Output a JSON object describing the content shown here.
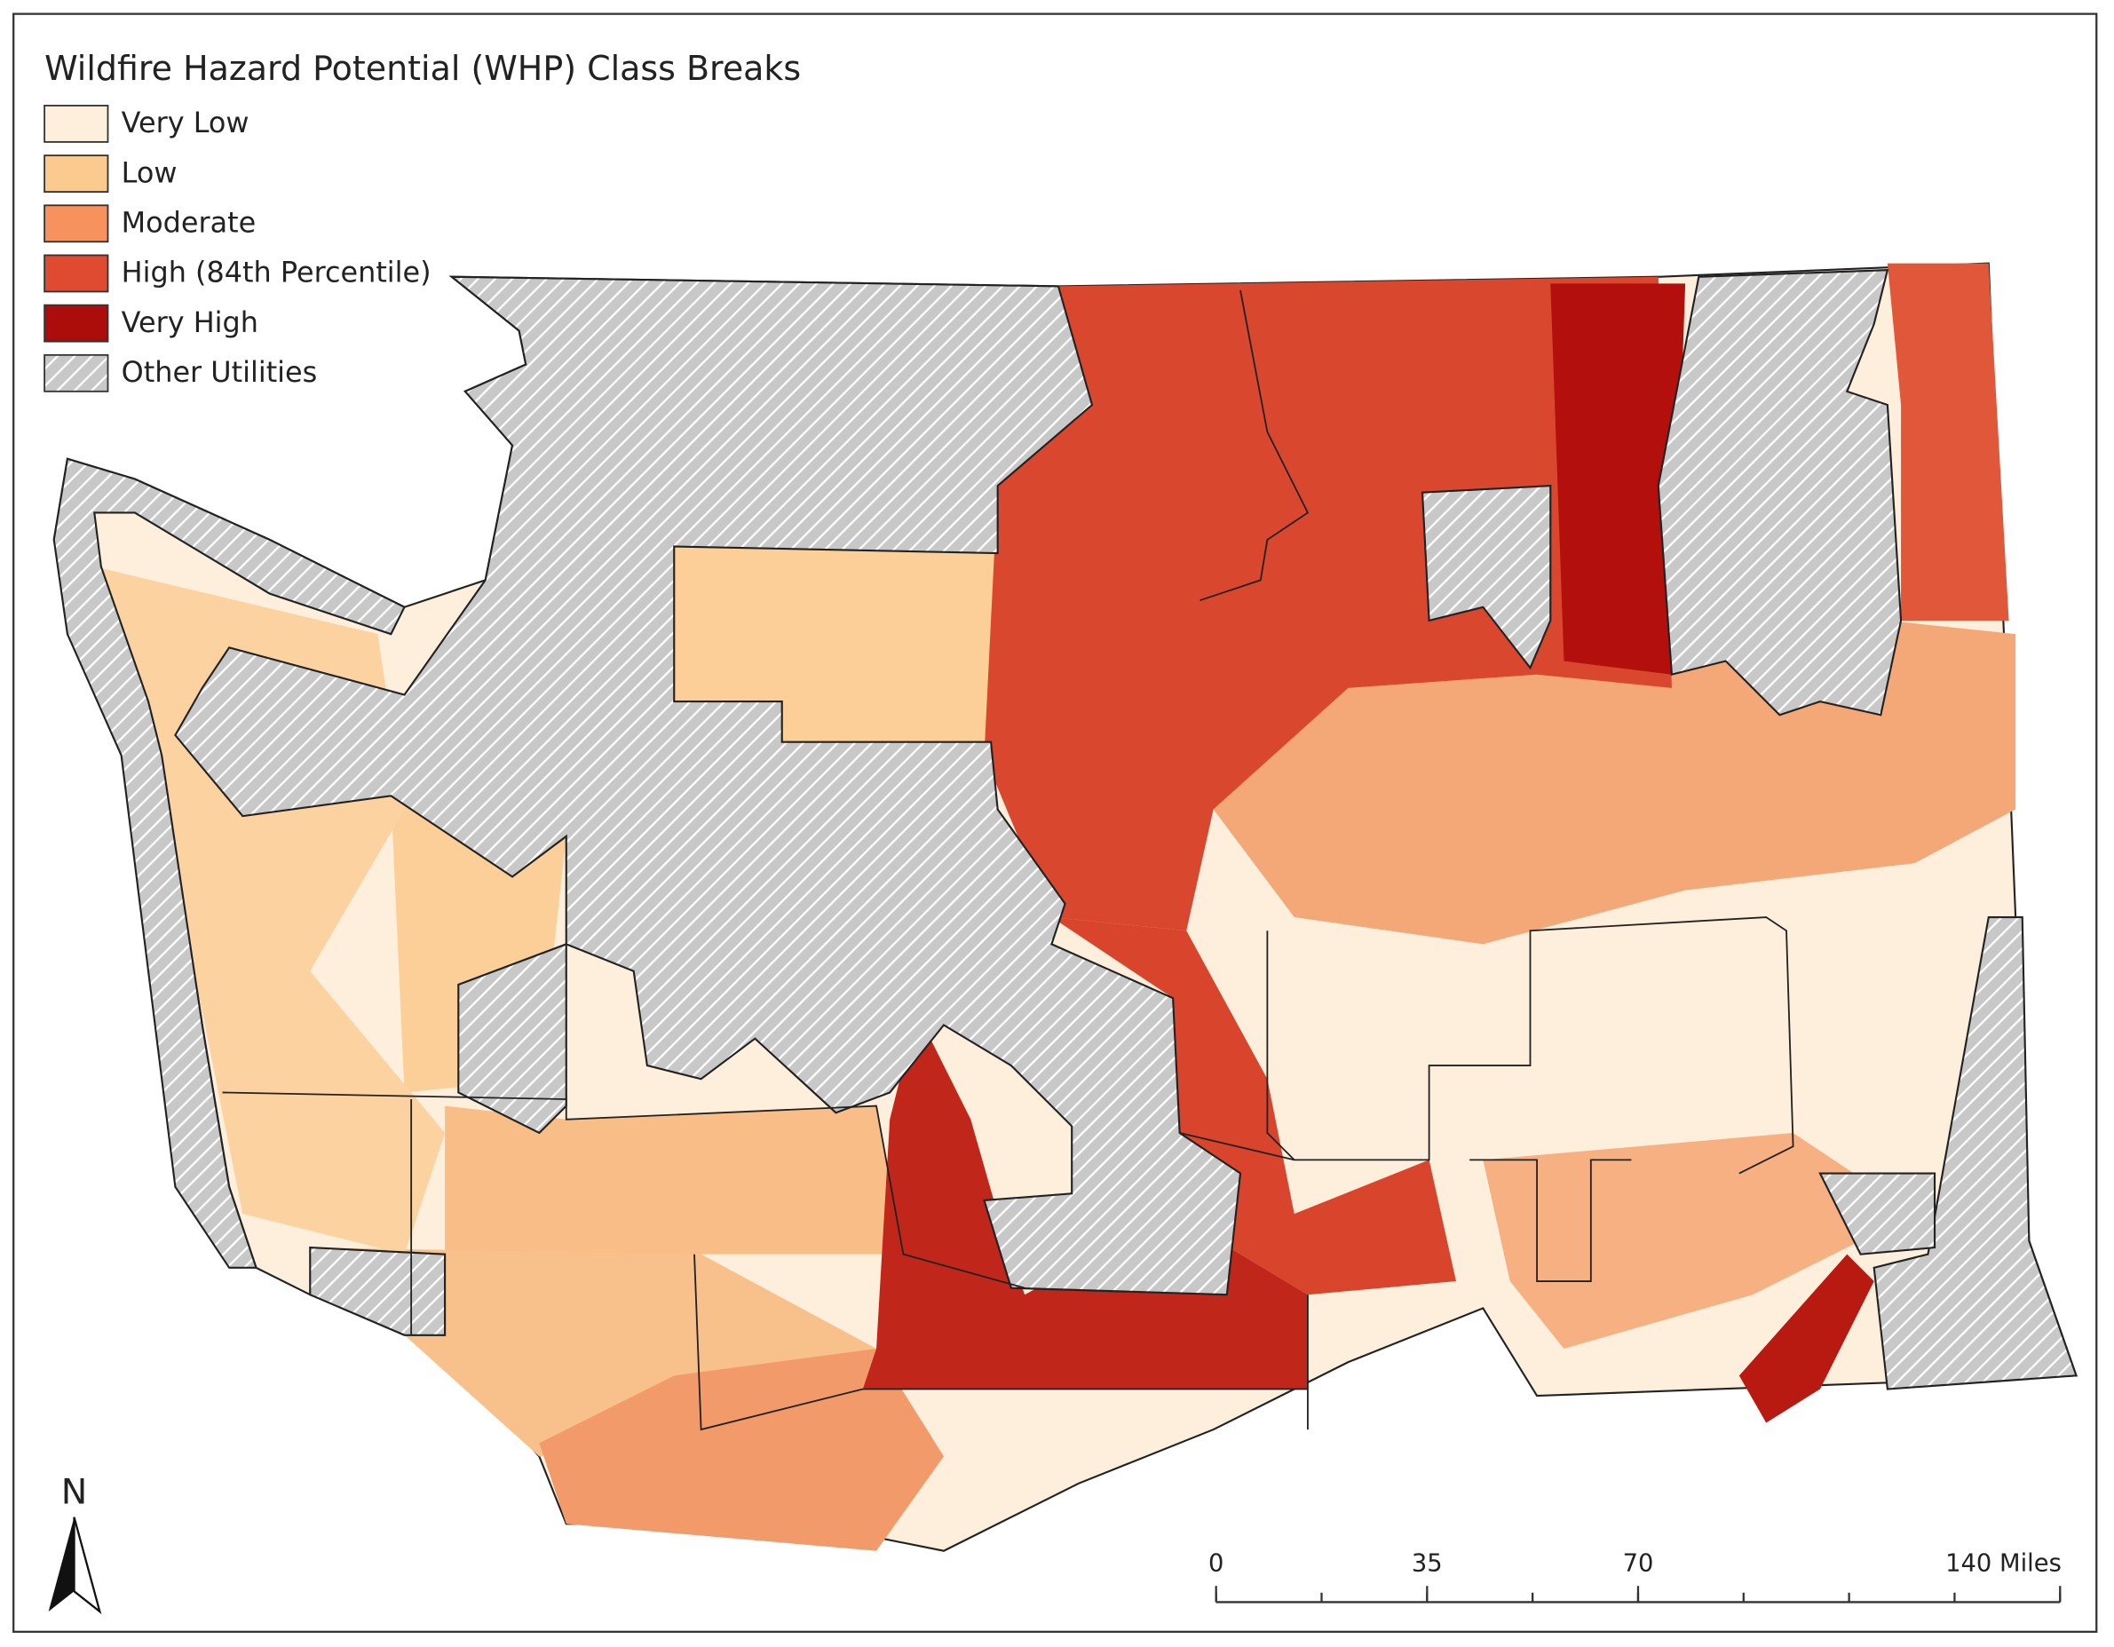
{
  "legend": {
    "title": "Wildfire Hazard Potential (WHP) Class Breaks",
    "items": [
      {
        "label": "Very Low",
        "color": "#fdefdb"
      },
      {
        "label": "Low",
        "color": "#fbca8e"
      },
      {
        "label": "Moderate",
        "color": "#f7925e"
      },
      {
        "label": "High (84th Percentile)",
        "color": "#df4b30"
      },
      {
        "label": "Very High",
        "color": "#ad0d0a"
      },
      {
        "label": "Other Utilities",
        "color": "hatch"
      }
    ]
  },
  "north_arrow": {
    "label": "N"
  },
  "scale_bar": {
    "range": [
      0,
      140
    ],
    "ticks": [
      0,
      35,
      70,
      {
        "value": 140,
        "label": "140 Miles"
      }
    ]
  }
}
